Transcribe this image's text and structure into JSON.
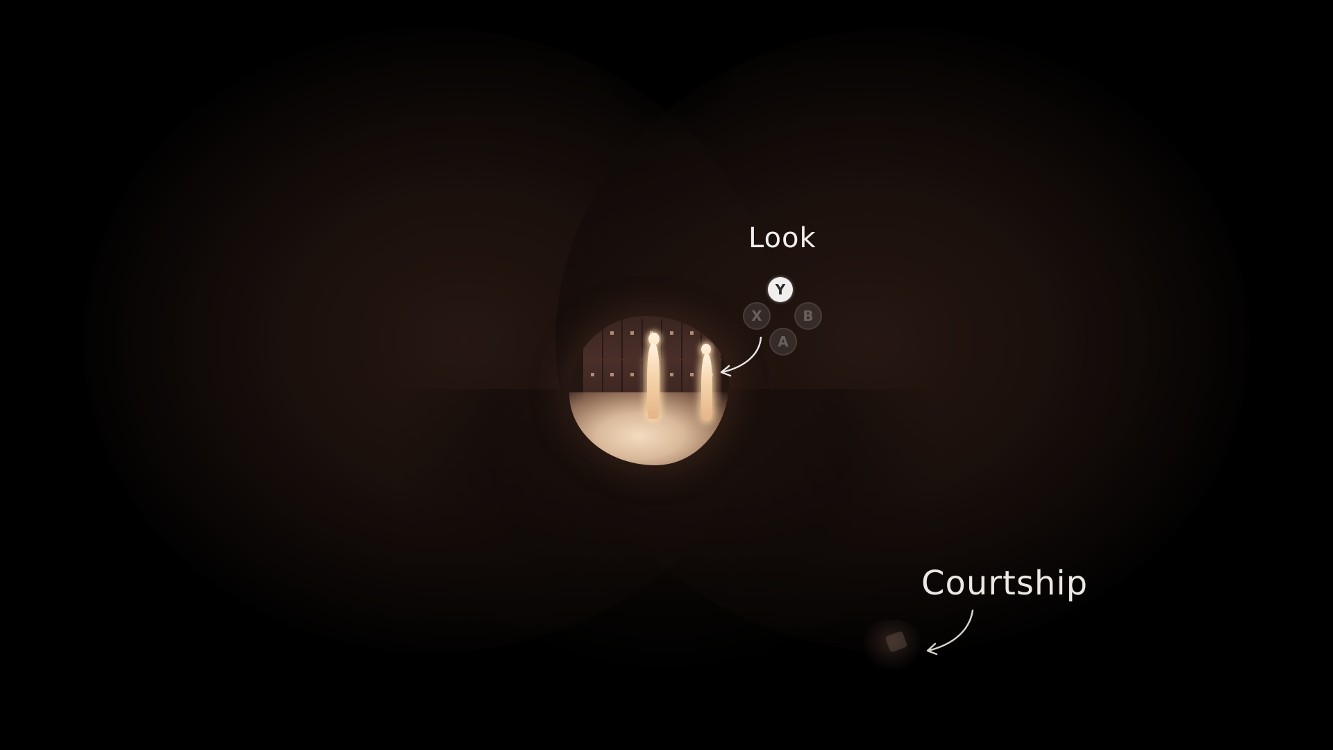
{
  "prompt": {
    "action_label": "Look",
    "buttons": {
      "y": "Y",
      "x": "X",
      "b": "B",
      "a": "A"
    },
    "active_button": "y"
  },
  "memory": {
    "label": "Courtship"
  },
  "icons": {
    "arrow_to_character": "hand-drawn-arrow-icon",
    "arrow_to_object": "hand-drawn-arrow-icon"
  },
  "colors": {
    "background": "#000000",
    "vignette": "#281812",
    "glow": "#f4dcc0",
    "text": "#f2f0ec",
    "button_active": "#f0efed",
    "button_inactive": "#504644"
  }
}
